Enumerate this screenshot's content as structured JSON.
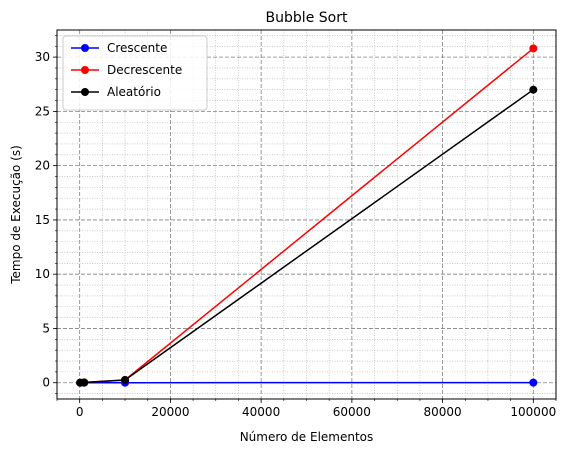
{
  "chart_data": {
    "type": "line",
    "title": "Bubble Sort",
    "xlabel": "Número de Elementos",
    "ylabel": "Tempo de Execução (s)",
    "xlim": [
      -5000,
      105000
    ],
    "ylim": [
      -1.5,
      32.5
    ],
    "xticks": [
      0,
      20000,
      40000,
      60000,
      80000,
      100000
    ],
    "yticks": [
      0,
      5,
      10,
      15,
      20,
      25,
      30
    ],
    "grid": "major dashed, minor dotted",
    "legend_position": "top-left",
    "x": [
      100,
      1000,
      10000,
      100000
    ],
    "series": [
      {
        "name": "Crescente",
        "color": "#0000ff",
        "values": [
          0.0,
          0.0,
          0.0,
          0.01
        ]
      },
      {
        "name": "Decrescente",
        "color": "#ff0000",
        "values": [
          0.0,
          0.03,
          0.25,
          30.8
        ]
      },
      {
        "name": "Aleatório",
        "color": "#000000",
        "values": [
          0.0,
          0.02,
          0.25,
          27.0
        ]
      }
    ]
  }
}
